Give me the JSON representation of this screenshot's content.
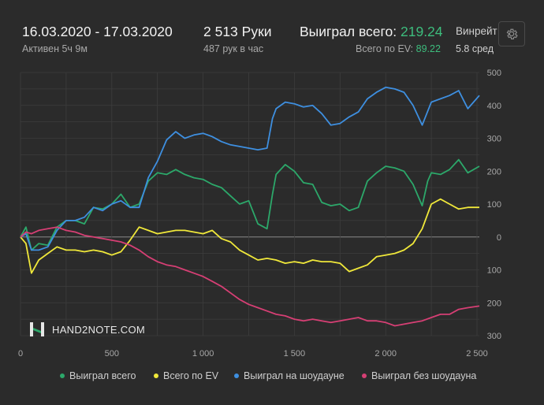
{
  "header": {
    "date_range": "16.03.2020 - 17.03.2020",
    "active": "Активен 5ч 9м",
    "hands": "2 513 Руки",
    "hands_per_hour": "487 рук в час",
    "won_total_label": "Выиграл всего:",
    "won_total_value": "219.24",
    "ev_total_label": "Всего по EV:",
    "ev_total_value": "89.22",
    "winrate_label": "Винрейт",
    "winrate_sub": "5.8 сред"
  },
  "settings_icon": "gear-icon",
  "logo": {
    "text": "HAND2NOTE.COM",
    "icon": "h2n-logo-icon"
  },
  "colors": {
    "background": "#2b2b2b",
    "grid": "#3d3d3d",
    "zero_line": "#8a8a8a",
    "won_total": "#2ca86a",
    "ev_total": "#f0e83a",
    "showdown": "#3e8fe0",
    "non_showdown": "#d63f74"
  },
  "chart_data": {
    "type": "line",
    "xlabel": "",
    "ylabel": "",
    "xlim": [
      0,
      2513
    ],
    "ylim": [
      -300,
      500
    ],
    "x_ticks": [
      {
        "v": 0,
        "label": "0"
      },
      {
        "v": 500,
        "label": "500"
      },
      {
        "v": 1000,
        "label": "1 000"
      },
      {
        "v": 1500,
        "label": "1 500"
      },
      {
        "v": 2000,
        "label": "2 000"
      },
      {
        "v": 2500,
        "label": "2 500"
      }
    ],
    "y_ticks": [
      {
        "v": 500,
        "label": "500"
      },
      {
        "v": 400,
        "label": "400"
      },
      {
        "v": 300,
        "label": "300"
      },
      {
        "v": 200,
        "label": "200"
      },
      {
        "v": 100,
        "label": "100"
      },
      {
        "v": 0,
        "label": "0"
      },
      {
        "v": -100,
        "label": "100"
      },
      {
        "v": -200,
        "label": "200"
      },
      {
        "v": -300,
        "label": "300"
      }
    ],
    "grid": true,
    "legend_position": "bottom",
    "series": [
      {
        "name": "Выиграл всего",
        "color": "#2ca86a",
        "points": [
          [
            0,
            0
          ],
          [
            30,
            30
          ],
          [
            60,
            -40
          ],
          [
            100,
            -20
          ],
          [
            150,
            -25
          ],
          [
            200,
            30
          ],
          [
            250,
            50
          ],
          [
            300,
            50
          ],
          [
            350,
            40
          ],
          [
            400,
            90
          ],
          [
            450,
            85
          ],
          [
            500,
            100
          ],
          [
            550,
            130
          ],
          [
            600,
            90
          ],
          [
            650,
            100
          ],
          [
            700,
            170
          ],
          [
            750,
            195
          ],
          [
            800,
            190
          ],
          [
            850,
            205
          ],
          [
            900,
            190
          ],
          [
            950,
            180
          ],
          [
            1000,
            175
          ],
          [
            1050,
            160
          ],
          [
            1100,
            150
          ],
          [
            1150,
            125
          ],
          [
            1200,
            100
          ],
          [
            1250,
            110
          ],
          [
            1300,
            40
          ],
          [
            1350,
            25
          ],
          [
            1380,
            130
          ],
          [
            1400,
            190
          ],
          [
            1450,
            220
          ],
          [
            1500,
            200
          ],
          [
            1550,
            165
          ],
          [
            1600,
            160
          ],
          [
            1650,
            105
          ],
          [
            1700,
            95
          ],
          [
            1750,
            100
          ],
          [
            1800,
            80
          ],
          [
            1850,
            90
          ],
          [
            1900,
            170
          ],
          [
            1950,
            195
          ],
          [
            2000,
            215
          ],
          [
            2050,
            210
          ],
          [
            2100,
            200
          ],
          [
            2150,
            160
          ],
          [
            2200,
            95
          ],
          [
            2230,
            170
          ],
          [
            2250,
            195
          ],
          [
            2300,
            190
          ],
          [
            2350,
            205
          ],
          [
            2400,
            235
          ],
          [
            2450,
            195
          ],
          [
            2513,
            215
          ]
        ]
      },
      {
        "name": "Всего по EV",
        "color": "#f0e83a",
        "points": [
          [
            0,
            0
          ],
          [
            30,
            -20
          ],
          [
            60,
            -110
          ],
          [
            100,
            -70
          ],
          [
            150,
            -50
          ],
          [
            200,
            -30
          ],
          [
            250,
            -40
          ],
          [
            300,
            -40
          ],
          [
            350,
            -45
          ],
          [
            400,
            -40
          ],
          [
            450,
            -45
          ],
          [
            500,
            -55
          ],
          [
            550,
            -45
          ],
          [
            600,
            -10
          ],
          [
            650,
            30
          ],
          [
            700,
            20
          ],
          [
            750,
            10
          ],
          [
            800,
            15
          ],
          [
            850,
            20
          ],
          [
            900,
            20
          ],
          [
            950,
            15
          ],
          [
            1000,
            10
          ],
          [
            1050,
            20
          ],
          [
            1100,
            -5
          ],
          [
            1150,
            -15
          ],
          [
            1200,
            -40
          ],
          [
            1250,
            -55
          ],
          [
            1300,
            -70
          ],
          [
            1350,
            -65
          ],
          [
            1400,
            -70
          ],
          [
            1450,
            -80
          ],
          [
            1500,
            -75
          ],
          [
            1550,
            -80
          ],
          [
            1600,
            -70
          ],
          [
            1650,
            -75
          ],
          [
            1700,
            -75
          ],
          [
            1750,
            -80
          ],
          [
            1800,
            -105
          ],
          [
            1850,
            -95
          ],
          [
            1900,
            -85
          ],
          [
            1950,
            -60
          ],
          [
            2000,
            -55
          ],
          [
            2050,
            -50
          ],
          [
            2100,
            -40
          ],
          [
            2150,
            -20
          ],
          [
            2200,
            25
          ],
          [
            2250,
            100
          ],
          [
            2300,
            115
          ],
          [
            2350,
            100
          ],
          [
            2400,
            85
          ],
          [
            2450,
            90
          ],
          [
            2513,
            90
          ]
        ]
      },
      {
        "name": "Выиграл на шоудауне",
        "color": "#3e8fe0",
        "points": [
          [
            0,
            0
          ],
          [
            30,
            10
          ],
          [
            60,
            -40
          ],
          [
            100,
            -40
          ],
          [
            150,
            -30
          ],
          [
            200,
            20
          ],
          [
            250,
            50
          ],
          [
            300,
            50
          ],
          [
            350,
            60
          ],
          [
            400,
            90
          ],
          [
            450,
            80
          ],
          [
            500,
            100
          ],
          [
            550,
            110
          ],
          [
            600,
            90
          ],
          [
            650,
            90
          ],
          [
            700,
            180
          ],
          [
            750,
            230
          ],
          [
            800,
            295
          ],
          [
            850,
            320
          ],
          [
            900,
            300
          ],
          [
            950,
            310
          ],
          [
            1000,
            315
          ],
          [
            1050,
            305
          ],
          [
            1100,
            290
          ],
          [
            1150,
            280
          ],
          [
            1200,
            275
          ],
          [
            1250,
            270
          ],
          [
            1300,
            265
          ],
          [
            1350,
            270
          ],
          [
            1380,
            360
          ],
          [
            1400,
            390
          ],
          [
            1450,
            410
          ],
          [
            1500,
            405
          ],
          [
            1550,
            395
          ],
          [
            1600,
            400
          ],
          [
            1650,
            375
          ],
          [
            1700,
            340
          ],
          [
            1750,
            345
          ],
          [
            1800,
            365
          ],
          [
            1850,
            380
          ],
          [
            1900,
            420
          ],
          [
            1950,
            440
          ],
          [
            2000,
            455
          ],
          [
            2050,
            450
          ],
          [
            2100,
            440
          ],
          [
            2150,
            400
          ],
          [
            2200,
            340
          ],
          [
            2250,
            410
          ],
          [
            2300,
            420
          ],
          [
            2350,
            430
          ],
          [
            2400,
            445
          ],
          [
            2450,
            390
          ],
          [
            2513,
            430
          ]
        ]
      },
      {
        "name": "Выиграл без шоудауна",
        "color": "#d63f74",
        "points": [
          [
            0,
            0
          ],
          [
            30,
            15
          ],
          [
            60,
            10
          ],
          [
            100,
            20
          ],
          [
            150,
            25
          ],
          [
            200,
            30
          ],
          [
            250,
            20
          ],
          [
            300,
            15
          ],
          [
            350,
            5
          ],
          [
            400,
            0
          ],
          [
            450,
            -5
          ],
          [
            500,
            -10
          ],
          [
            550,
            -15
          ],
          [
            600,
            -25
          ],
          [
            650,
            -40
          ],
          [
            700,
            -60
          ],
          [
            750,
            -75
          ],
          [
            800,
            -85
          ],
          [
            850,
            -90
          ],
          [
            900,
            -100
          ],
          [
            950,
            -110
          ],
          [
            1000,
            -120
          ],
          [
            1050,
            -135
          ],
          [
            1100,
            -150
          ],
          [
            1150,
            -170
          ],
          [
            1200,
            -190
          ],
          [
            1250,
            -205
          ],
          [
            1300,
            -215
          ],
          [
            1350,
            -225
          ],
          [
            1400,
            -235
          ],
          [
            1450,
            -240
          ],
          [
            1500,
            -250
          ],
          [
            1550,
            -255
          ],
          [
            1600,
            -250
          ],
          [
            1650,
            -255
          ],
          [
            1700,
            -260
          ],
          [
            1750,
            -255
          ],
          [
            1800,
            -250
          ],
          [
            1850,
            -245
          ],
          [
            1900,
            -255
          ],
          [
            1950,
            -255
          ],
          [
            2000,
            -260
          ],
          [
            2050,
            -270
          ],
          [
            2100,
            -265
          ],
          [
            2150,
            -260
          ],
          [
            2200,
            -255
          ],
          [
            2250,
            -245
          ],
          [
            2300,
            -235
          ],
          [
            2350,
            -235
          ],
          [
            2400,
            -220
          ],
          [
            2450,
            -215
          ],
          [
            2513,
            -210
          ]
        ]
      }
    ]
  }
}
